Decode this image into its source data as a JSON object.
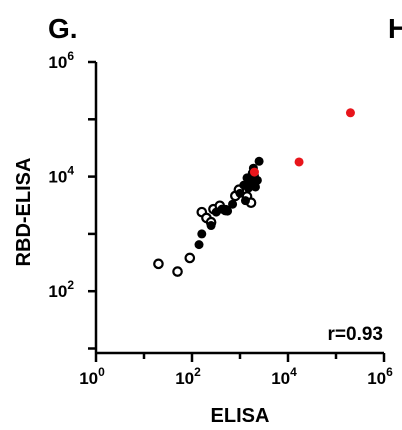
{
  "panel": {
    "label": "G.",
    "next_label_fragment": "H"
  },
  "chart_data": {
    "type": "scatter",
    "title": "",
    "xlabel": "ELISA",
    "ylabel": "RBD-ELISA",
    "xscale": "log",
    "yscale": "log",
    "xlim": [
      1,
      1000000
    ],
    "ylim": [
      10,
      1000000
    ],
    "x_ticks": [
      {
        "value": 1,
        "base": "10",
        "exp": "0"
      },
      {
        "value": 100,
        "base": "10",
        "exp": "2"
      },
      {
        "value": 10000,
        "base": "10",
        "exp": "4"
      },
      {
        "value": 1000000,
        "base": "10",
        "exp": "6"
      }
    ],
    "y_ticks": [
      {
        "value": 100,
        "base": "10",
        "exp": "2"
      },
      {
        "value": 10000,
        "base": "10",
        "exp": "4"
      },
      {
        "value": 1000000,
        "base": "10",
        "exp": "6"
      }
    ],
    "grid": false,
    "annotation": "r=0.93",
    "series": [
      {
        "style": "open-circle",
        "color": "#000000",
        "points": [
          [
            20,
            300
          ],
          [
            50,
            220
          ],
          [
            90,
            380
          ],
          [
            160,
            2400
          ],
          [
            200,
            1900
          ],
          [
            250,
            1600
          ],
          [
            280,
            2700
          ],
          [
            380,
            3100
          ],
          [
            500,
            2600
          ],
          [
            800,
            4600
          ],
          [
            950,
            5900
          ],
          [
            1400,
            4500
          ],
          [
            1700,
            3500
          ]
        ]
      },
      {
        "style": "filled-circle",
        "color": "#000000",
        "points": [
          [
            140,
            650
          ],
          [
            160,
            1000
          ],
          [
            250,
            1400
          ],
          [
            320,
            2400
          ],
          [
            420,
            2700
          ],
          [
            550,
            2500
          ],
          [
            700,
            3300
          ],
          [
            1000,
            5100
          ],
          [
            1200,
            7100
          ],
          [
            1300,
            3800
          ],
          [
            1400,
            9500
          ],
          [
            1500,
            6300
          ],
          [
            1700,
            8200
          ],
          [
            1800,
            11500
          ],
          [
            1900,
            14000
          ],
          [
            2000,
            10500
          ],
          [
            2100,
            6600
          ],
          [
            2300,
            8600
          ],
          [
            2500,
            18500
          ]
        ]
      },
      {
        "style": "filled-circle",
        "color": "#e8151b",
        "points": [
          [
            2000,
            12000
          ],
          [
            17000,
            18000
          ],
          [
            200000,
            130000
          ]
        ]
      }
    ]
  }
}
